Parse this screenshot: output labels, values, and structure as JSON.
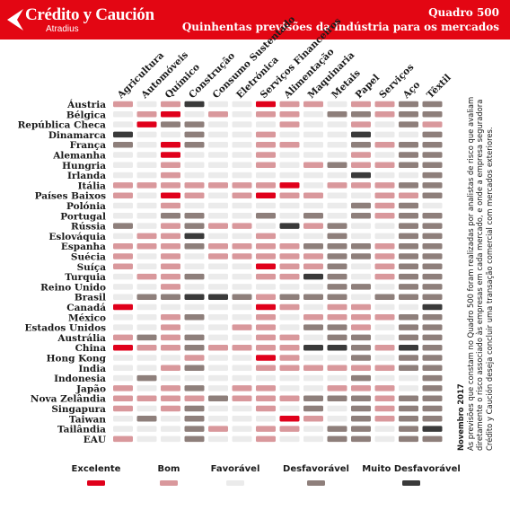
{
  "header": {
    "brand_name": "Crédito y Caución",
    "brand_sub": "Atradius",
    "title": "Quadro 500",
    "subtitle": "Quinhentas previsões da indústria para os mercados"
  },
  "note": {
    "date": "Novembro 2017",
    "text": "As previsões que constam no Quadro 500 foram realizadas por analistas de risco que avaliam diretamente o risco associado às empresas em cada mercado, e onde a empresa seguradora Crédito y Caución deseja concluir uma transação comercial com mercados exteriores."
  },
  "colors": {
    "brand": "#e30613",
    "Excelente": "#e0001b",
    "Bom": "#d9989c",
    "Favorável": "#ebebeb",
    "Desfavorável": "#8e7f7b",
    "Muito Desfavorável": "#3a3a3a"
  },
  "chart_data": {
    "type": "heatmap",
    "title": "Quadro 500",
    "subtitle": "Quinhentas previsões da indústria para os mercados",
    "x": [
      "Agricultura",
      "Automóveis",
      "Químico",
      "Construção",
      "Consumo Sustentado",
      "Eletrónica",
      "Serviços Financeiros",
      "Alimentação",
      "Maquinaria",
      "Metais",
      "Papel",
      "Serviços",
      "Aço",
      "Têxtil"
    ],
    "y": [
      "Áustria",
      "Bélgica",
      "República Checa",
      "Dinamarca",
      "França",
      "Alemanha",
      "Hungria",
      "Irlanda",
      "Itália",
      "Países Baixos",
      "Polónia",
      "Portugal",
      "Rússia",
      "Eslováquia",
      "Espanha",
      "Suécia",
      "Suíça",
      "Turquia",
      "Reino Unido",
      "Brasil",
      "Canadá",
      "México",
      "Estados Unidos",
      "Austrália",
      "China",
      "Hong Kong",
      "India",
      "Indonesia",
      "Japão",
      "Nova Zelândia",
      "Singapura",
      "Taiwan",
      "Tailândia",
      "EAU"
    ],
    "legend": [
      "Excelente",
      "Bom",
      "Favorável",
      "Desfavorável",
      "Muito Desfavorável"
    ],
    "values": [
      [
        "Bom",
        "Favorável",
        "Bom",
        "Muito Desfavorável",
        "Favorável",
        "Favorável",
        "Excelente",
        "Bom",
        "Bom",
        "Favorável",
        "Bom",
        "Bom",
        "Desfavorável",
        "Desfavorável"
      ],
      [
        "Favorável",
        "Bom",
        "Excelente",
        "Favorável",
        "Bom",
        "Favorável",
        "Bom",
        "Bom",
        "Favorável",
        "Desfavorável",
        "Desfavorável",
        "Bom",
        "Desfavorável",
        "Desfavorável"
      ],
      [
        "Favorável",
        "Excelente",
        "Desfavorável",
        "Desfavorável",
        "Favorável",
        "Favorável",
        "Favorável",
        "Bom",
        "Favorável",
        "Favorável",
        "Bom",
        "Favorável",
        "Desfavorável",
        "Bom"
      ],
      [
        "Muito Desfavorável",
        "Favorável",
        "Favorável",
        "Desfavorável",
        "Favorável",
        "Favorável",
        "Bom",
        "Favorável",
        "Favorável",
        "Favorável",
        "Muito Desfavorável",
        "Favorável",
        "Favorável",
        "Desfavorável"
      ],
      [
        "Desfavorável",
        "Favorável",
        "Excelente",
        "Desfavorável",
        "Favorável",
        "Favorável",
        "Bom",
        "Bom",
        "Favorável",
        "Favorável",
        "Desfavorável",
        "Bom",
        "Desfavorável",
        "Desfavorável"
      ],
      [
        "Favorável",
        "Favorável",
        "Excelente",
        "Favorável",
        "Favorável",
        "Favorável",
        "Bom",
        "Favorável",
        "Favorável",
        "Favorável",
        "Bom",
        "Favorável",
        "Desfavorável",
        "Desfavorável"
      ],
      [
        "Favorável",
        "Favorável",
        "Bom",
        "Favorável",
        "Favorável",
        "Favorável",
        "Bom",
        "Favorável",
        "Bom",
        "Desfavorável",
        "Bom",
        "Bom",
        "Desfavorável",
        "Desfavorável"
      ],
      [
        "Favorável",
        "Favorável",
        "Bom",
        "Favorável",
        "Favorável",
        "Favorável",
        "Favorável",
        "Favorável",
        "Favorável",
        "Favorável",
        "Muito Desfavorável",
        "Favorável",
        "Favorável",
        "Desfavorável"
      ],
      [
        "Bom",
        "Bom",
        "Bom",
        "Bom",
        "Bom",
        "Bom",
        "Bom",
        "Excelente",
        "Favorável",
        "Bom",
        "Bom",
        "Bom",
        "Desfavorável",
        "Desfavorável"
      ],
      [
        "Bom",
        "Favorável",
        "Excelente",
        "Bom",
        "Favorável",
        "Bom",
        "Excelente",
        "Bom",
        "Bom",
        "Favorável",
        "Favorável",
        "Bom",
        "Bom",
        "Desfavorável"
      ],
      [
        "Favorável",
        "Favorável",
        "Bom",
        "Favorável",
        "Favorável",
        "Favorável",
        "Favorável",
        "Favorável",
        "Favorável",
        "Favorável",
        "Desfavorável",
        "Bom",
        "Desfavorável",
        "Favorável"
      ],
      [
        "Favorável",
        "Favorável",
        "Desfavorável",
        "Desfavorável",
        "Favorável",
        "Favorável",
        "Desfavorável",
        "Favorável",
        "Desfavorável",
        "Favorável",
        "Desfavorável",
        "Bom",
        "Desfavorável",
        "Desfavorável"
      ],
      [
        "Desfavorável",
        "Favorável",
        "Bom",
        "Desfavorável",
        "Bom",
        "Bom",
        "Favorável",
        "Muito Desfavorável",
        "Bom",
        "Desfavorável",
        "Favorável",
        "Favorável",
        "Desfavorável",
        "Desfavorável"
      ],
      [
        "Favorável",
        "Bom",
        "Bom",
        "Muito Desfavorável",
        "Favorável",
        "Favorável",
        "Bom",
        "Favorável",
        "Favorável",
        "Desfavorável",
        "Favorável",
        "Favorável",
        "Desfavorável",
        "Desfavorável"
      ],
      [
        "Bom",
        "Bom",
        "Bom",
        "Desfavorável",
        "Bom",
        "Bom",
        "Bom",
        "Bom",
        "Desfavorável",
        "Desfavorável",
        "Desfavorável",
        "Bom",
        "Desfavorável",
        "Desfavorável"
      ],
      [
        "Bom",
        "Favorável",
        "Bom",
        "Favorável",
        "Bom",
        "Bom",
        "Bom",
        "Bom",
        "Bom",
        "Desfavorável",
        "Desfavorável",
        "Bom",
        "Desfavorável",
        "Desfavorável"
      ],
      [
        "Bom",
        "Favorável",
        "Bom",
        "Favorável",
        "Favorável",
        "Favorável",
        "Excelente",
        "Bom",
        "Bom",
        "Desfavorável",
        "Favorável",
        "Bom",
        "Desfavorável",
        "Desfavorável"
      ],
      [
        "Favorável",
        "Bom",
        "Bom",
        "Desfavorável",
        "Favorável",
        "Favorável",
        "Bom",
        "Bom",
        "Muito Desfavorável",
        "Desfavorável",
        "Favorável",
        "Bom",
        "Desfavorável",
        "Desfavorável"
      ],
      [
        "Favorável",
        "Favorável",
        "Bom",
        "Favorável",
        "Favorável",
        "Favorável",
        "Favorável",
        "Favorável",
        "Favorável",
        "Desfavorável",
        "Desfavorável",
        "Favorável",
        "Desfavorável",
        "Desfavorável"
      ],
      [
        "Favorável",
        "Desfavorável",
        "Desfavorável",
        "Muito Desfavorável",
        "Muito Desfavorável",
        "Desfavorável",
        "Bom",
        "Desfavorável",
        "Desfavorável",
        "Desfavorável",
        "Favorável",
        "Desfavorável",
        "Desfavorável",
        "Desfavorável"
      ],
      [
        "Excelente",
        "Favorável",
        "Favorável",
        "Favorável",
        "Favorável",
        "Favorável",
        "Excelente",
        "Bom",
        "Favorável",
        "Bom",
        "Bom",
        "Favorável",
        "Favorável",
        "Muito Desfavorável"
      ],
      [
        "Favorável",
        "Favorável",
        "Bom",
        "Desfavorável",
        "Favorável",
        "Favorável",
        "Bom",
        "Favorável",
        "Bom",
        "Bom",
        "Bom",
        "Bom",
        "Desfavorável",
        "Desfavorável"
      ],
      [
        "Favorável",
        "Favorável",
        "Bom",
        "Favorável",
        "Favorável",
        "Bom",
        "Bom",
        "Favorável",
        "Desfavorável",
        "Desfavorável",
        "Bom",
        "Favorável",
        "Desfavorável",
        "Desfavorável"
      ],
      [
        "Bom",
        "Desfavorável",
        "Bom",
        "Desfavorável",
        "Favorável",
        "Favorável",
        "Bom",
        "Bom",
        "Favorável",
        "Desfavorável",
        "Desfavorável",
        "Favorável",
        "Desfavorável",
        "Desfavorável"
      ],
      [
        "Excelente",
        "Bom",
        "Bom",
        "Desfavorável",
        "Bom",
        "Bom",
        "Bom",
        "Bom",
        "Muito Desfavorável",
        "Muito Desfavorável",
        "Desfavorável",
        "Bom",
        "Muito Desfavorável",
        "Desfavorável"
      ],
      [
        "Favorável",
        "Favorável",
        "Favorável",
        "Bom",
        "Favorável",
        "Favorável",
        "Excelente",
        "Bom",
        "Favorável",
        "Favorável",
        "Desfavorável",
        "Favorável",
        "Desfavorável",
        "Desfavorável"
      ],
      [
        "Favorável",
        "Favorável",
        "Bom",
        "Desfavorável",
        "Favorável",
        "Favorável",
        "Bom",
        "Bom",
        "Bom",
        "Bom",
        "Bom",
        "Bom",
        "Desfavorável",
        "Desfavorável"
      ],
      [
        "Favorável",
        "Desfavorável",
        "Favorável",
        "Favorável",
        "Favorável",
        "Favorável",
        "Favorável",
        "Favorável",
        "Favorável",
        "Favorável",
        "Desfavorável",
        "Favorável",
        "Favorável",
        "Desfavorável"
      ],
      [
        "Bom",
        "Favorável",
        "Bom",
        "Desfavorável",
        "Favorável",
        "Bom",
        "Bom",
        "Favorável",
        "Favorável",
        "Bom",
        "Bom",
        "Bom",
        "Favorável",
        "Desfavorável"
      ],
      [
        "Bom",
        "Bom",
        "Bom",
        "Bom",
        "Desfavorável",
        "Bom",
        "Bom",
        "Bom",
        "Desfavorável",
        "Desfavorável",
        "Desfavorável",
        "Bom",
        "Desfavorável",
        "Desfavorável"
      ],
      [
        "Bom",
        "Favorável",
        "Bom",
        "Desfavorável",
        "Favorável",
        "Favorável",
        "Bom",
        "Favorável",
        "Desfavorável",
        "Favorável",
        "Desfavorável",
        "Bom",
        "Desfavorável",
        "Desfavorável"
      ],
      [
        "Favorável",
        "Desfavorável",
        "Favorável",
        "Desfavorável",
        "Favorável",
        "Favorável",
        "Favorável",
        "Excelente",
        "Bom",
        "Favorável",
        "Desfavorável",
        "Bom",
        "Desfavorável",
        "Desfavorável"
      ],
      [
        "Favorável",
        "Favorável",
        "Favorável",
        "Desfavorável",
        "Bom",
        "Favorável",
        "Bom",
        "Bom",
        "Favorável",
        "Desfavorável",
        "Desfavorável",
        "Favorável",
        "Desfavorável",
        "Muito Desfavorável"
      ],
      [
        "Bom",
        "Favorável",
        "Favorável",
        "Desfavorável",
        "Favorável",
        "Favorável",
        "Bom",
        "Favorável",
        "Favorável",
        "Desfavorável",
        "Desfavorável",
        "Favorável",
        "Desfavorável",
        "Desfavorável"
      ]
    ]
  }
}
